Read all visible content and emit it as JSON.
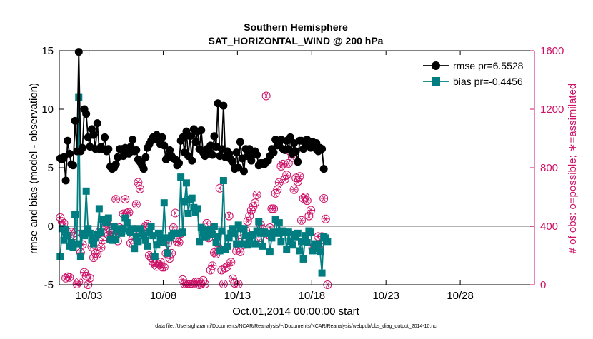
{
  "chart_data": {
    "type": "line",
    "title": [
      "Southern Hemisphere",
      "SAT_HORIZONTAL_WIND @ 200 hPa"
    ],
    "xlabel": "Oct.01,2014 00:00:00 start",
    "ylabel": "rmse and bias (model - observation)",
    "ylabel_right": "# of obs: o=possible; ∗=assimilated",
    "footer": "data file: /Users/gharamti/Documents/NCAR/Reanalysis/~/Documents/NCAR/Reanalysis/webpub/obs_diag_output_2014-10.nc",
    "xlim": [
      0,
      32
    ],
    "x_ticks": [
      2,
      7,
      12,
      17,
      22,
      27
    ],
    "x_tick_labels": [
      "10/03",
      "10/08",
      "10/13",
      "10/18",
      "10/23",
      "10/28"
    ],
    "ylim": [
      -5,
      15
    ],
    "y_ticks": [
      -5,
      0,
      5,
      10,
      15
    ],
    "ylim_right": [
      0,
      1600
    ],
    "y_ticks_right": [
      0,
      400,
      800,
      1200,
      1600
    ],
    "grid": false,
    "zero_line": true,
    "legend_position": "top-right",
    "colors": {
      "rmse": "#000000",
      "bias": "#007d80",
      "obs": "#cc1166",
      "zero": "#b4b4b4"
    },
    "x_step": 0.125,
    "series": [
      {
        "name": "rmse pr=6.5528",
        "marker": "circle",
        "values": [
          5.8,
          5.7,
          5.9,
          3.9,
          7.3,
          6.2,
          5.3,
          5.2,
          9.0,
          6.4,
          14.9,
          6.4,
          6.7,
          10.0,
          9.6,
          7.6,
          6.8,
          8.3,
          7.8,
          6.6,
          8.8,
          6.6,
          6.8,
          6.6,
          7.6,
          6.4,
          6.6,
          5.1,
          4.9,
          5.0,
          5.3,
          5.9,
          6.6,
          6.6,
          6.0,
          6.7,
          6.4,
          6.2,
          6.8,
          7.4,
          6.4,
          6.5,
          5.7,
          5.5,
          5.2,
          4.9,
          5.9,
          6.7,
          7.0,
          7.3,
          7.6,
          7.4,
          7.8,
          7.6,
          7.0,
          7.6,
          6.9,
          5.7,
          5.9,
          6.5,
          6.0,
          5.8,
          5.7,
          5.2,
          5.4,
          7.3,
          7.6,
          6.3,
          8.1,
          6.0,
          7.7,
          5.6,
          8.3,
          7.2,
          8.1,
          6.6,
          8.2,
          6.3,
          6.0,
          6.6,
          6.4,
          6.9,
          6.1,
          7.7,
          6.8,
          10.5,
          6.0,
          6.6,
          10.3,
          5.9,
          6.4,
          6.2,
          5.7,
          5.5,
          4.9,
          6.3,
          5.0,
          7.2,
          5.8,
          4.7,
          6.6,
          6.0,
          6.6,
          5.6,
          6.2,
          6.4,
          6.1,
          5.2,
          5.4,
          5.4,
          5.3,
          5.5,
          5.6,
          6.0,
          6.6,
          6.3,
          7.4,
          6.9,
          7.1,
          7.4,
          6.6,
          6.5,
          7.3,
          6.6,
          7.6,
          6.2,
          7.1,
          6.4,
          5.5,
          7.3,
          7.3,
          6.6,
          7.1,
          7.4,
          7.2,
          6.7,
          7.2,
          6.7,
          7.1,
          6.4,
          6.7,
          6.6,
          4.9
        ]
      },
      {
        "name": "bias pr=-0.4456",
        "marker": "square",
        "values": [
          -2.6,
          -0.2,
          -1.2,
          -0.3,
          -0.8,
          -1.7,
          -1.4,
          -1.8,
          1.0,
          -1.5,
          11.0,
          -2.6,
          -0.6,
          -0.8,
          3.0,
          -0.2,
          -0.6,
          -1.2,
          -1.5,
          -1.0,
          -0.7,
          1.5,
          -0.5,
          0.6,
          0.6,
          0.3,
          0.7,
          -1.1,
          -1.2,
          0.0,
          -1.1,
          -0.2,
          -0.3,
          -0.6,
          -0.2,
          0.7,
          0.3,
          -0.4,
          -0.5,
          -0.2,
          -1.9,
          -0.9,
          -1.3,
          -0.2,
          -0.6,
          -0.8,
          -1.2,
          -1.7,
          -0.5,
          0.0,
          -0.8,
          -2.6,
          -1.6,
          -0.6,
          -1.0,
          -1.4,
          2.0,
          -1.0,
          -2.3,
          -1.0,
          -0.8,
          -0.6,
          -0.6,
          -0.6,
          -0.6,
          4.2,
          -0.5,
          2.1,
          3.7,
          1.1,
          2.3,
          2.4,
          1.6,
          1.2,
          1.5,
          -1.3,
          -0.1,
          -0.3,
          -0.9,
          -0.8,
          -0.4,
          -0.3,
          -0.7,
          0.0,
          -1.4,
          -0.9,
          -2.1,
          -0.4,
          3.9,
          -2.0,
          -1.7,
          -1.0,
          -0.6,
          -0.2,
          -0.6,
          -1.5,
          0.1,
          -0.2,
          -1.5,
          -0.2,
          -0.8,
          -1.6,
          -1.0,
          -0.8,
          -0.7,
          -1.5,
          -0.4,
          0.4,
          -0.6,
          -1.7,
          -0.5,
          -0.6,
          -0.6,
          -2.2,
          -1.0,
          -0.5,
          0.6,
          -0.6,
          0.3,
          -1.3,
          -0.4,
          -0.5,
          -2.0,
          -0.5,
          -1.3,
          -1.6,
          -0.7,
          -0.9,
          -0.6,
          -2.1,
          -1.3,
          -2.8,
          -0.8,
          -1.4,
          -0.4,
          -0.5,
          -2.1,
          -1.5,
          -1.9,
          -1.5,
          -2.2,
          -4.0,
          -0.9,
          -1.0,
          -1.3
        ]
      },
      {
        "name": "obs",
        "axis": "right",
        "marker": "circle-star",
        "values": [
          460,
          430,
          420,
          45,
          55,
          50,
          360,
          310,
          355,
          5,
          20,
          220,
          275,
          85,
          60,
          0,
          45,
          260,
          185,
          215,
          210,
          360,
          255,
          305,
          380,
          420,
          340,
          365,
          355,
          355,
          585,
          300,
          390,
          380,
          485,
          585,
          490,
          495,
          285,
          310,
          380,
          550,
          700,
          655,
          380,
          345,
          400,
          415,
          200,
          185,
          155,
          140,
          125,
          140,
          155,
          120,
          120,
          215,
          285,
          180,
          215,
          390,
          490,
          295,
          290,
          350,
          35,
          5,
          5,
          5,
          5,
          5,
          5,
          20,
          20,
          0,
          5,
          30,
          5,
          420,
          320,
          100,
          130,
          220,
          210,
          260,
          660,
          100,
          5,
          115,
          125,
          470,
          155,
          40,
          10,
          230,
          5,
          225,
          315,
          275,
          370,
          435,
          470,
          510,
          535,
          560,
          615,
          295,
          410,
          380,
          360,
          1290,
          340,
          390,
          520,
          520,
          625,
          650,
          700,
          810,
          825,
          720,
          750,
          830,
          910,
          870,
          650,
          730,
          705,
          740,
          440,
          590,
          600,
          575,
          470,
          510,
          250,
          265,
          240,
          330,
          280,
          330,
          590,
          450,
          0
        ]
      }
    ]
  }
}
